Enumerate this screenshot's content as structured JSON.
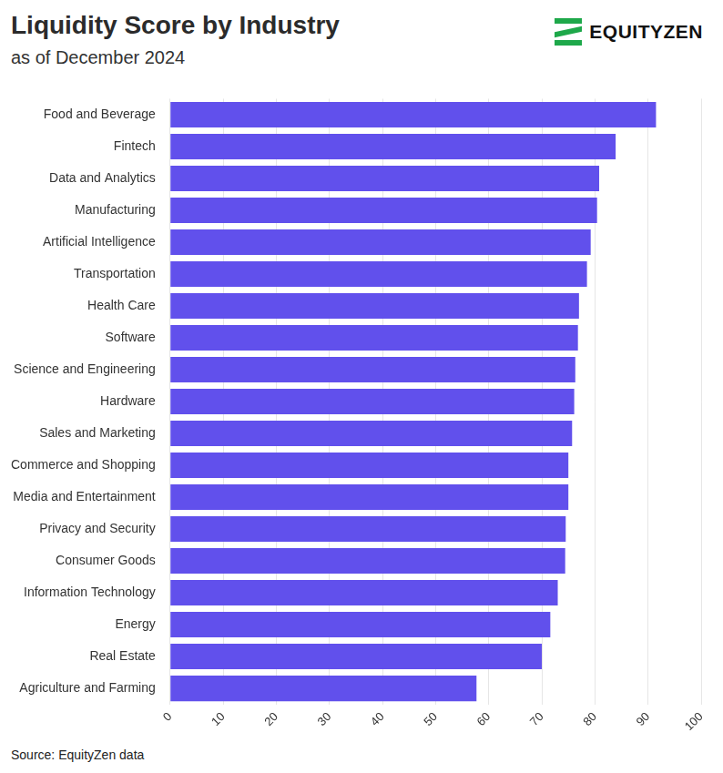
{
  "chart_data": {
    "type": "bar",
    "orientation": "horizontal",
    "title": "Liquidity Score by Industry",
    "subtitle": "as of December 2024",
    "annotations": [
      "Source: EquityZen data",
      "EQUITYZEN"
    ],
    "categories": [
      "Food and Beverage",
      "Fintech",
      "Data and Analytics",
      "Manufacturing",
      "Artificial Intelligence",
      "Transportation",
      "Health Care",
      "Software",
      "Science and Engineering",
      "Hardware",
      "Sales and Marketing",
      "Commerce and Shopping",
      "Media and Entertainment",
      "Privacy and Security",
      "Consumer Goods",
      "Information Technology",
      "Energy",
      "Real Estate",
      "Agriculture and Farming"
    ],
    "values": [
      91.5,
      83.9,
      80.8,
      80.4,
      79.2,
      78.5,
      77.0,
      76.8,
      76.3,
      76.1,
      75.7,
      75.0,
      75.0,
      74.5,
      74.4,
      73.0,
      71.6,
      70.0,
      57.7
    ],
    "color": "#6150ec",
    "xlim": [
      0,
      100
    ],
    "xticks": [
      0,
      10,
      20,
      30,
      40,
      50,
      60,
      70,
      80,
      90,
      100
    ],
    "grid": true
  }
}
